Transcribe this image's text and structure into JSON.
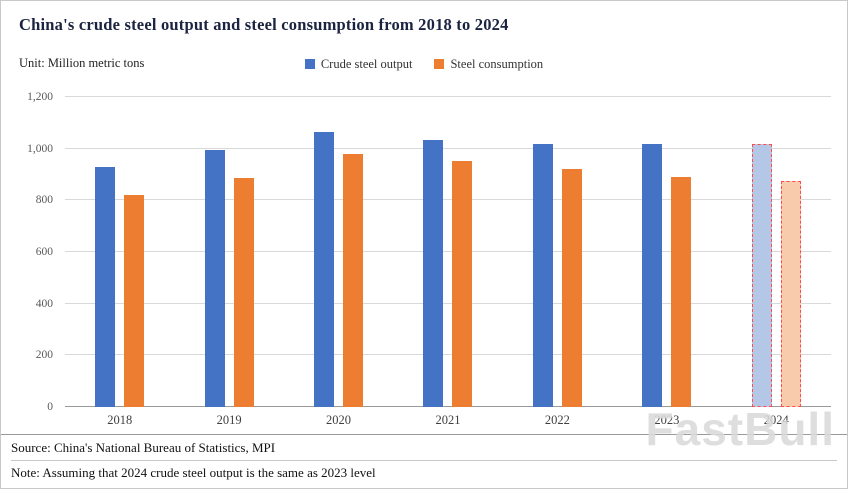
{
  "header": {
    "title": "China's crude steel output and steel consumption from 2018 to 2024",
    "unit_label": "Unit: Million metric tons"
  },
  "legend": [
    {
      "label": "Crude steel output",
      "color": "#4472C4"
    },
    {
      "label": "Steel consumption",
      "color": "#ED7D31"
    }
  ],
  "chart_data": {
    "type": "bar",
    "title": "China's crude steel output and steel consumption from 2018 to 2024",
    "ylabel": "Million metric tons",
    "xlabel": "",
    "categories": [
      "2018",
      "2019",
      "2020",
      "2021",
      "2022",
      "2023",
      "2024"
    ],
    "series": [
      {
        "name": "Crude steel output",
        "values": [
          928,
          996,
          1065,
          1033,
          1018,
          1019,
          1019
        ],
        "color": "#4472C4",
        "forecast_color": "#B4C7E7"
      },
      {
        "name": "Steel consumption",
        "values": [
          820,
          886,
          980,
          952,
          920,
          890,
          875
        ],
        "color": "#ED7D31",
        "forecast_color": "#F8CBAD"
      }
    ],
    "forecast_category": "2024",
    "forecast_border_color": "#FF4D4D",
    "ylim": [
      0,
      1200
    ],
    "ytick_interval": 200,
    "yticks": [
      "0",
      "200",
      "400",
      "600",
      "800",
      "1,000",
      "1,200"
    ],
    "grid": true,
    "legend_position": "top-center"
  },
  "footer": {
    "source": "Source: China's National Bureau of Statistics, MPI",
    "note": "Note: Assuming that 2024 crude steel output is the same as 2023 level"
  },
  "watermark": "FastBull"
}
